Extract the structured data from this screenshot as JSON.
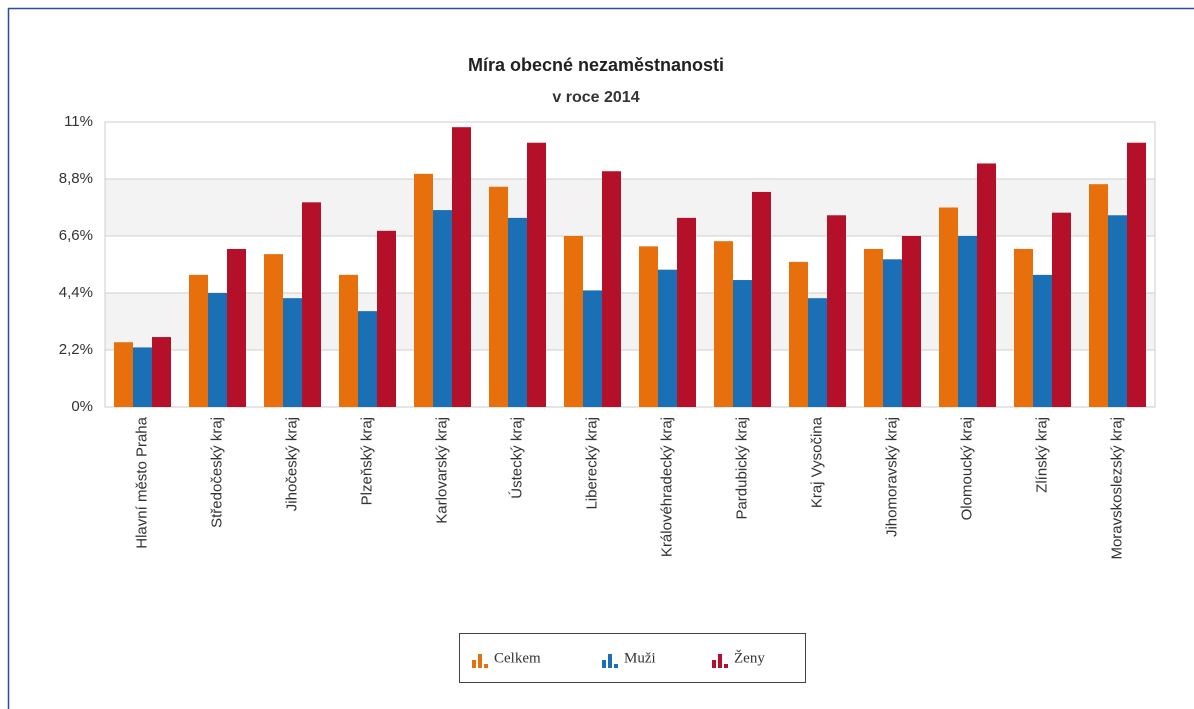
{
  "chart_data": {
    "type": "bar",
    "title": "Míra obecné nezaměstnanosti",
    "subtitle": "v roce 2014",
    "categories": [
      "Hlavní město Praha",
      "Středočeský kraj",
      "Jihočeský kraj",
      "Plzeňský kraj",
      "Karlovarský kraj",
      "Ústecký kraj",
      "Liberecký kraj",
      "Královéhradecký kraj",
      "Pardubický kraj",
      "Kraj Vysočina",
      "Jihomoravský kraj",
      "Olomoucký kraj",
      "Zlínský kraj",
      "Moravskoslezský kraj"
    ],
    "series": [
      {
        "name": "Celkem",
        "color": "#e8700c",
        "values": [
          2.5,
          5.1,
          5.9,
          5.1,
          9.0,
          8.5,
          6.6,
          6.2,
          6.4,
          5.6,
          6.1,
          7.7,
          6.1,
          8.6
        ]
      },
      {
        "name": "Muži",
        "color": "#1a6fb5",
        "values": [
          2.3,
          4.4,
          4.2,
          3.7,
          7.6,
          7.3,
          4.5,
          5.3,
          4.9,
          4.2,
          5.7,
          6.6,
          5.1,
          7.4
        ]
      },
      {
        "name": "Ženy",
        "color": "#b5102a",
        "values": [
          2.7,
          6.1,
          7.9,
          6.8,
          10.8,
          10.2,
          9.1,
          7.3,
          8.3,
          7.4,
          6.6,
          9.4,
          7.5,
          10.2
        ]
      }
    ],
    "ylim": [
      0,
      11
    ],
    "yticks": [
      {
        "value": 0,
        "label": "0%"
      },
      {
        "value": 2.2,
        "label": "2,2%"
      },
      {
        "value": 4.4,
        "label": "4,4%"
      },
      {
        "value": 6.6,
        "label": "6,6%"
      },
      {
        "value": 8.8,
        "label": "8,8%"
      },
      {
        "value": 11,
        "label": "11%"
      }
    ],
    "grid": true,
    "legend": "bottom"
  }
}
